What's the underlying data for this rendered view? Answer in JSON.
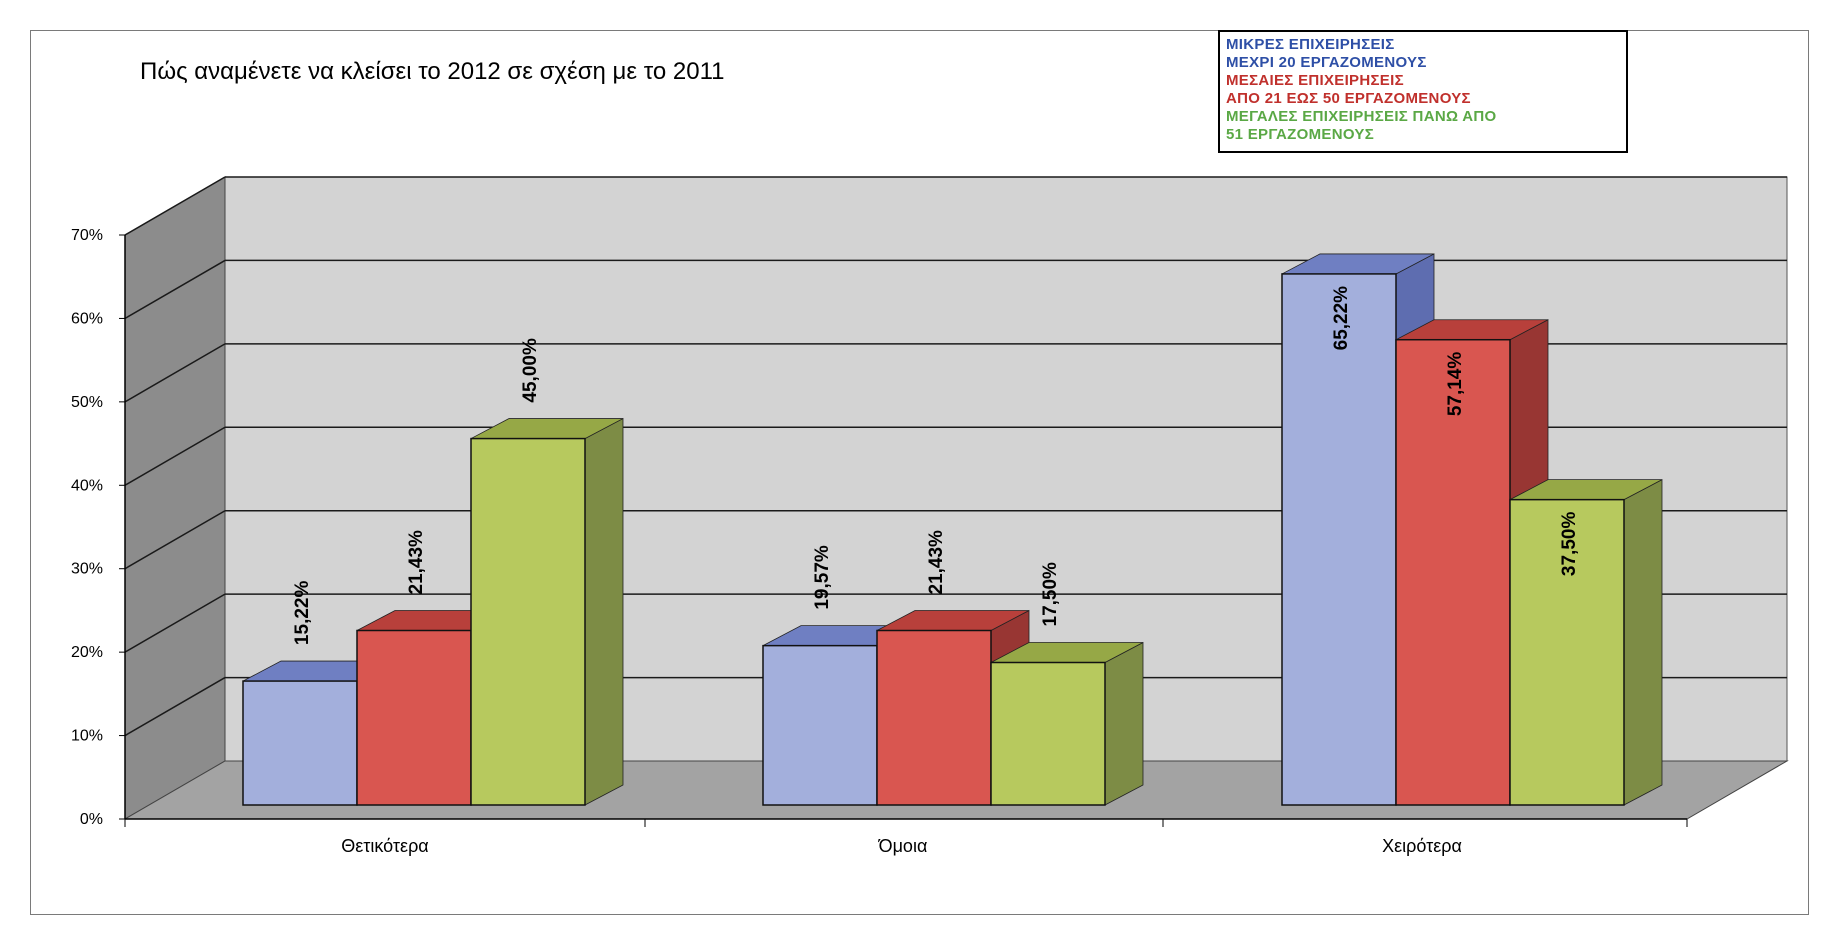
{
  "chart_data": {
    "type": "bar",
    "title": "Πώς αναμένετε να κλείσει το 2012 σε σχέση με το 2011",
    "categories": [
      "Θετικότερα",
      "Όμοια",
      "Χειρότερα"
    ],
    "series": [
      {
        "name": "ΜΙΚΡΕΣ ΕΠΙΧΕΙΡΗΣΕΙΣ ΜΕΧΡΙ 20 ΕΡΓΑΖΟΜΕΝΟΥΣ",
        "values": [
          15.22,
          19.57,
          65.22
        ],
        "labels": [
          "15,22%",
          "19,57%",
          "65,22%"
        ]
      },
      {
        "name": "ΜΕΣΑΙΕΣ ΕΠΙΧΕΙΡΗΣΕΙΣ ΑΠΟ 21 ΕΩΣ 50 ΕΡΓΑΖΟΜΕΝΟΥΣ",
        "values": [
          21.43,
          21.43,
          57.14
        ],
        "labels": [
          "21,43%",
          "21,43%",
          "57,14%"
        ]
      },
      {
        "name": "ΜΕΓΑΛΕΣ ΕΠΙΧΕΙΡΗΣΕΙΣ ΠΑΝΩ ΑΠΟ 51 ΕΡΓΑΖΟΜΕΝΟΥΣ",
        "values": [
          45.0,
          17.5,
          37.5
        ],
        "labels": [
          "45,00%",
          "17,50%",
          "37,50%"
        ]
      }
    ],
    "ylim": [
      0,
      70
    ],
    "yticks": [
      "0%",
      "10%",
      "20%",
      "30%",
      "40%",
      "50%",
      "60%",
      "70%"
    ],
    "grid": true,
    "legend_position": "top-right",
    "style": "3d-clustered-column",
    "colors": {
      "series": [
        {
          "front": "#a3afdc",
          "top": "#6f7fc2",
          "side": "#5e6db0",
          "legend": "#2e4fa6"
        },
        {
          "front": "#d95650",
          "top": "#b8403b",
          "side": "#983633",
          "legend": "#c0302c"
        },
        {
          "front": "#b7c95e",
          "top": "#96a846",
          "side": "#7d8c45",
          "legend": "#5aa845"
        }
      ],
      "wall": "#d3d3d3",
      "side_wall": "#8c8c8c",
      "floor": "#a3a3a3"
    }
  },
  "legend": {
    "lines": [
      {
        "text": "ΜΙΚΡΕΣ ΕΠΙΧΕΙΡΗΣΕΙΣ",
        "series": 0
      },
      {
        "text": "ΜΕΧΡΙ  20 ΕΡΓΑΖΟΜΕΝΟΥΣ",
        "series": 0
      },
      {
        "text": "ΜΕΣΑΙΕΣ ΕΠΙΧΕΙΡΗΣΕΙΣ",
        "series": 1
      },
      {
        "text": "ΑΠΟ 21 ΕΩΣ 50 ΕΡΓΑΖΟΜΕΝΟΥΣ",
        "series": 1
      },
      {
        "text": "ΜΕΓΑΛΕΣ ΕΠΙΧΕΙΡΗΣΕΙΣ ΠΑΝΩ ΑΠΟ",
        "series": 2
      },
      {
        "text": "51 ΕΡΓΑΖΟΜΕΝΟΥΣ",
        "series": 2
      }
    ]
  }
}
